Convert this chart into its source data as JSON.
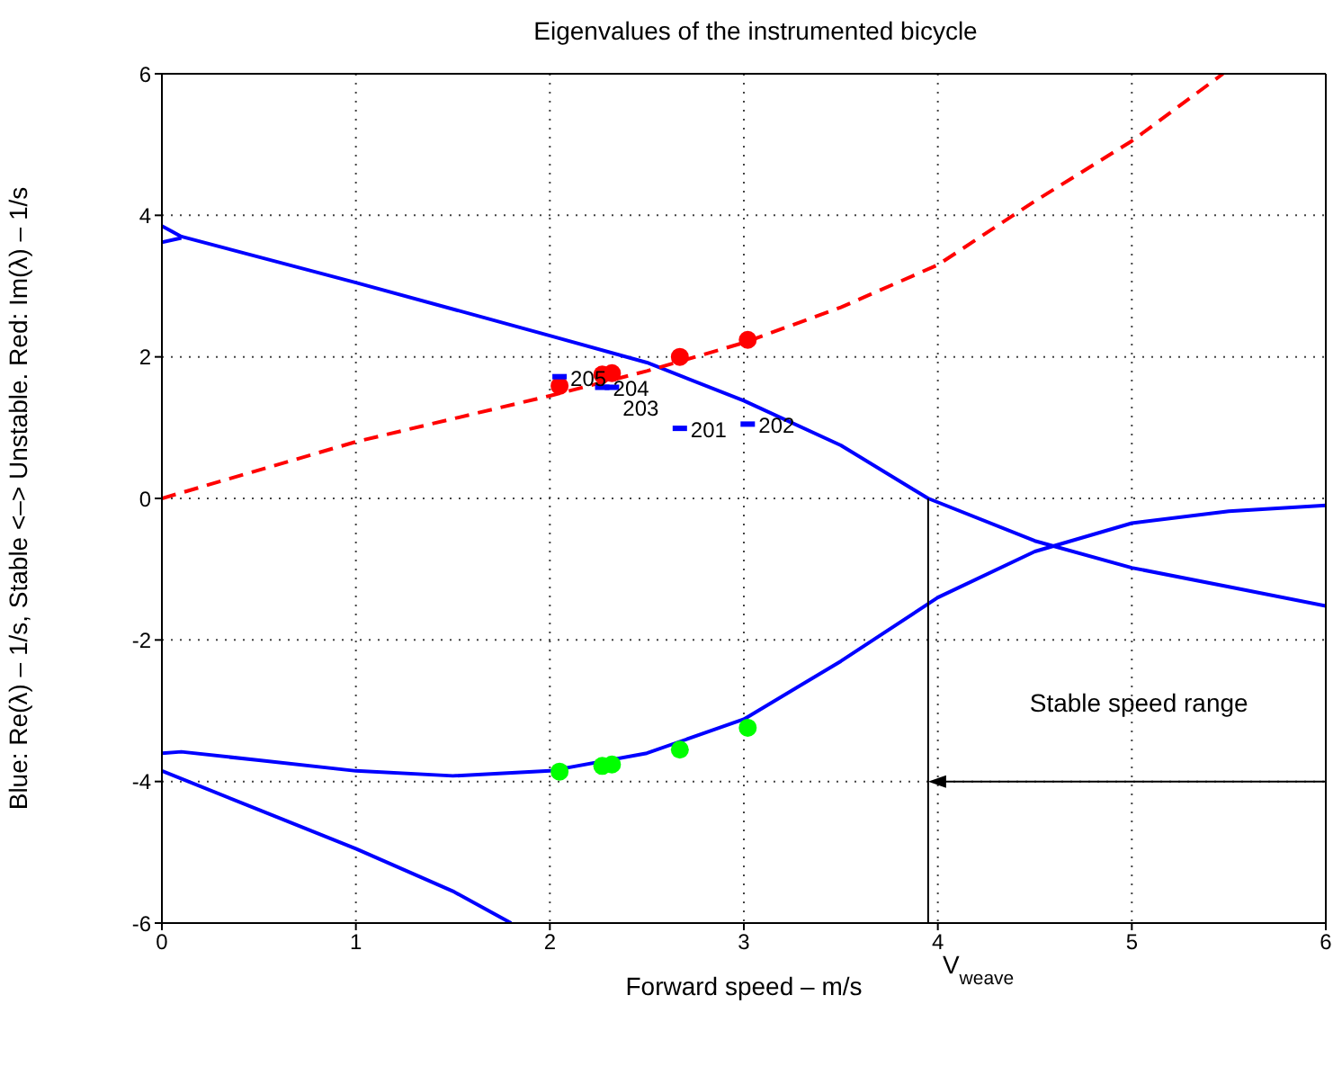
{
  "chart_data": {
    "type": "line",
    "title": "Eigenvalues of the instrumented bicycle",
    "xlabel": "Forward speed – m/s",
    "ylabel": "Blue: Re(λ) – 1/s, Stable <–> Unstable. Red: Im(λ) – 1/s",
    "xlim": [
      0,
      6
    ],
    "ylim": [
      -6,
      6
    ],
    "xticks": [
      0,
      1,
      2,
      3,
      4,
      5,
      6
    ],
    "yticks": [
      -6,
      -4,
      -2,
      0,
      2,
      4,
      6
    ],
    "grid": true,
    "series": [
      {
        "color": "#0000ff",
        "line_style": "solid",
        "x": [
          0,
          0.1,
          1,
          2,
          2.5,
          3,
          3.5,
          3.95,
          4.5,
          5,
          5.5,
          6
        ],
        "values": [
          3.85,
          3.7,
          3.05,
          2.3,
          1.92,
          1.38,
          0.75,
          0,
          -0.6,
          -0.98,
          -1.25,
          -1.52
        ]
      },
      {
        "type": "line",
        "color": "#0000ff",
        "line_style": "solid",
        "x": [
          0,
          0.1
        ],
        "values": [
          3.62,
          3.68
        ]
      },
      {
        "type": "line",
        "color": "#0000ff",
        "line_style": "solid",
        "x": [
          0,
          0.1,
          0.5,
          1,
          1.5,
          2,
          2.5,
          3,
          3.5,
          4,
          4.5,
          5,
          5.5,
          6
        ],
        "values": [
          -3.6,
          -3.58,
          -3.7,
          -3.85,
          -3.92,
          -3.85,
          -3.6,
          -3.12,
          -2.3,
          -1.4,
          -0.75,
          -0.35,
          -0.18,
          -0.1
        ]
      },
      {
        "type": "line",
        "color": "#0000ff",
        "line_style": "solid",
        "x": [
          0,
          0.5,
          1,
          1.5,
          1.8
        ],
        "values": [
          -3.85,
          -4.4,
          -4.95,
          -5.55,
          -6
        ]
      },
      {
        "type": "line",
        "color": "#ff0000",
        "line_style": "dashed",
        "x": [
          0,
          1,
          2,
          2.5,
          3,
          3.5,
          4,
          4.5,
          5,
          5.47
        ],
        "values": [
          0,
          0.8,
          1.45,
          1.8,
          2.2,
          2.7,
          3.3,
          4.2,
          5.05,
          6
        ]
      },
      {
        "type": "scatter",
        "color": "#ff0000",
        "marker": "circle",
        "x": [
          2.05,
          2.27,
          2.32,
          2.67,
          3.02
        ],
        "values": [
          1.59,
          1.75,
          1.77,
          2.0,
          2.24
        ]
      },
      {
        "type": "scatter",
        "color": "#00ff00",
        "marker": "circle",
        "x": [
          2.05,
          2.27,
          2.32,
          2.67,
          3.02
        ],
        "values": [
          -3.86,
          -3.78,
          -3.76,
          -3.55,
          -3.24
        ]
      },
      {
        "type": "scatter",
        "color": "#0000ff",
        "x": [
          2.05,
          2.27,
          2.32,
          2.67,
          3.02
        ],
        "values": [
          1.72,
          1.57,
          1.57,
          0.99,
          1.05
        ]
      }
    ],
    "annotations": [
      {
        "text": "205",
        "x": 2.05,
        "y": 1.72
      },
      {
        "text": "204",
        "x": 2.27,
        "y": 1.57
      },
      {
        "text": "203",
        "x": 2.32,
        "y": 1.57
      },
      {
        "text": "201",
        "x": 2.67,
        "y": 0.99
      },
      {
        "text": "202",
        "x": 3.02,
        "y": 1.05
      },
      "Stable speed range"
    ],
    "ref_lines": [
      {
        "axis": "x",
        "value": 3.95,
        "label": "V$_{weave}$",
        "color": "#000000"
      }
    ]
  }
}
